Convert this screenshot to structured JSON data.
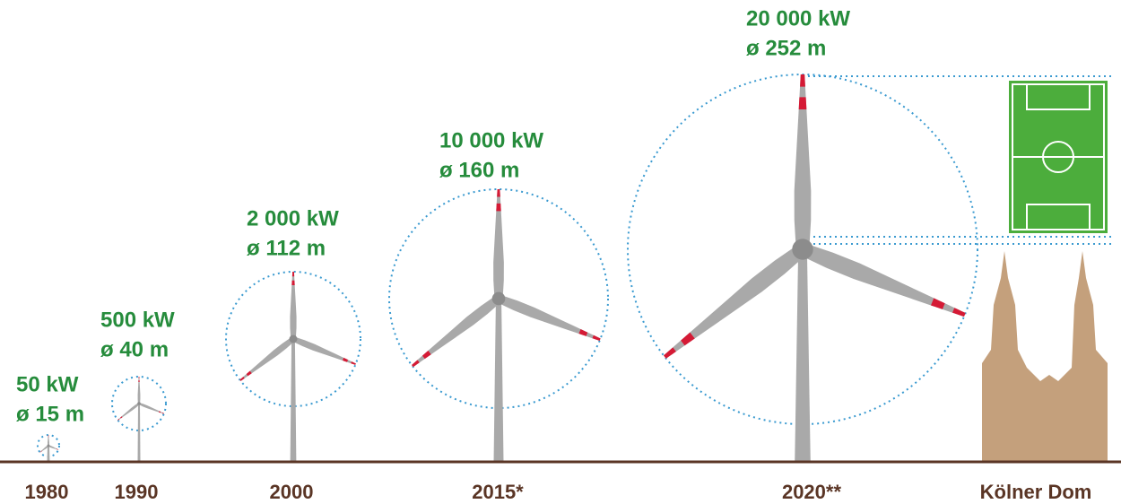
{
  "turbines": [
    {
      "power": "50 kW",
      "diameter": "ø 15 m",
      "year": "1980"
    },
    {
      "power": "500 kW",
      "diameter": "ø 40 m",
      "year": "1990"
    },
    {
      "power": "2 000 kW",
      "diameter": "ø 112 m",
      "year": "2000"
    },
    {
      "power": "10 000 kW",
      "diameter": "ø 160 m",
      "year": "2015*"
    },
    {
      "power": "20 000 kW",
      "diameter": "ø 252 m",
      "year": "2020**"
    }
  ],
  "reference": {
    "label": "Kölner Dom"
  }
}
